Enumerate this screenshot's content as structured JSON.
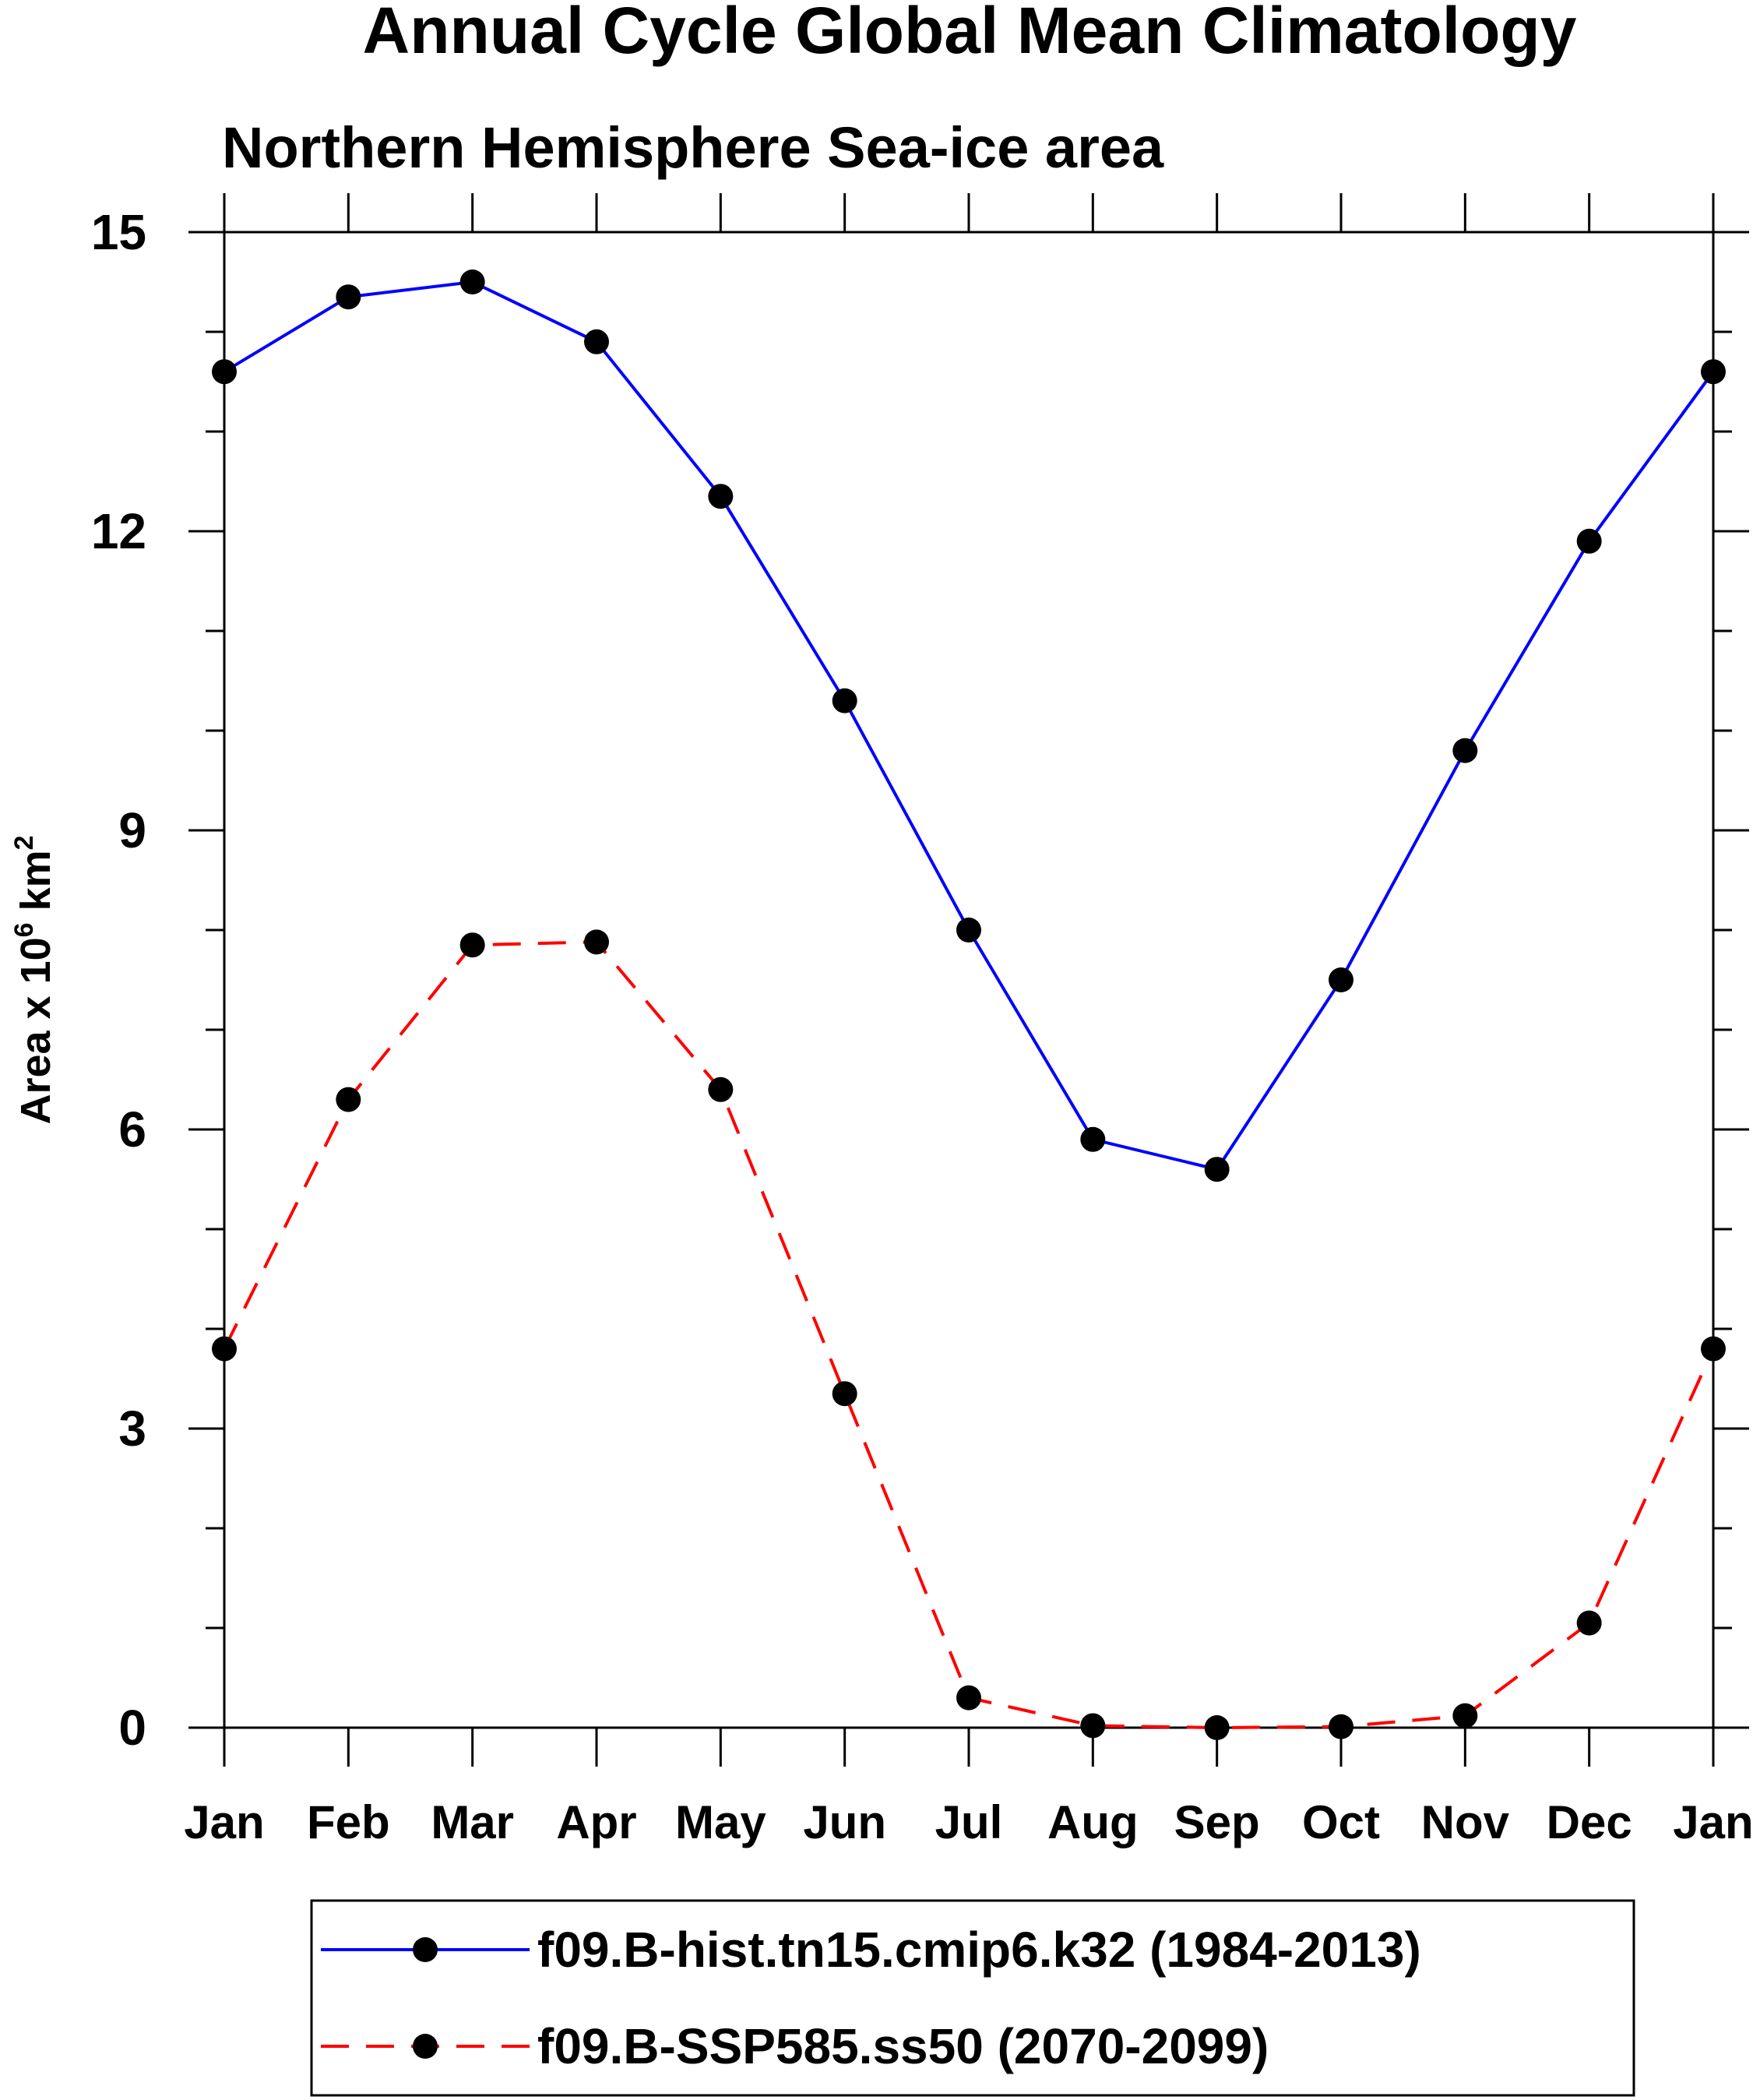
{
  "chart_data": {
    "type": "line",
    "title": "Annual Cycle Global Mean Climatology",
    "subtitle": "Northern Hemisphere Sea-ice area",
    "ylabel_main": "Area x 10",
    "ylabel_sup1": "6",
    "ylabel_mid": " km",
    "ylabel_sup2": "2",
    "xlabel": "",
    "categories": [
      "Jan",
      "Feb",
      "Mar",
      "Apr",
      "May",
      "Jun",
      "Jul",
      "Aug",
      "Sep",
      "Oct",
      "Nov",
      "Dec",
      "Jan"
    ],
    "yticks": [
      0,
      3,
      6,
      9,
      12,
      15
    ],
    "ylim": [
      0,
      15
    ],
    "minor_ytick_step": 1,
    "grid": false,
    "legend_position": "bottom",
    "series": [
      {
        "name": "f09.B-hist.tn15.cmip6.k32 (1984-2013)",
        "color": "#0000ff",
        "dash": "solid",
        "values": [
          13.6,
          14.35,
          14.5,
          13.9,
          12.35,
          10.3,
          8.0,
          5.9,
          5.6,
          7.5,
          9.8,
          11.9,
          13.6
        ]
      },
      {
        "name": "f09.B-SSP585.ss50 (2070-2099)",
        "color": "#ff0000",
        "dash": "dashed",
        "values": [
          3.8,
          6.3,
          7.85,
          7.88,
          6.4,
          3.35,
          0.3,
          0.02,
          0.0,
          0.01,
          0.12,
          1.05,
          3.8
        ]
      }
    ]
  }
}
